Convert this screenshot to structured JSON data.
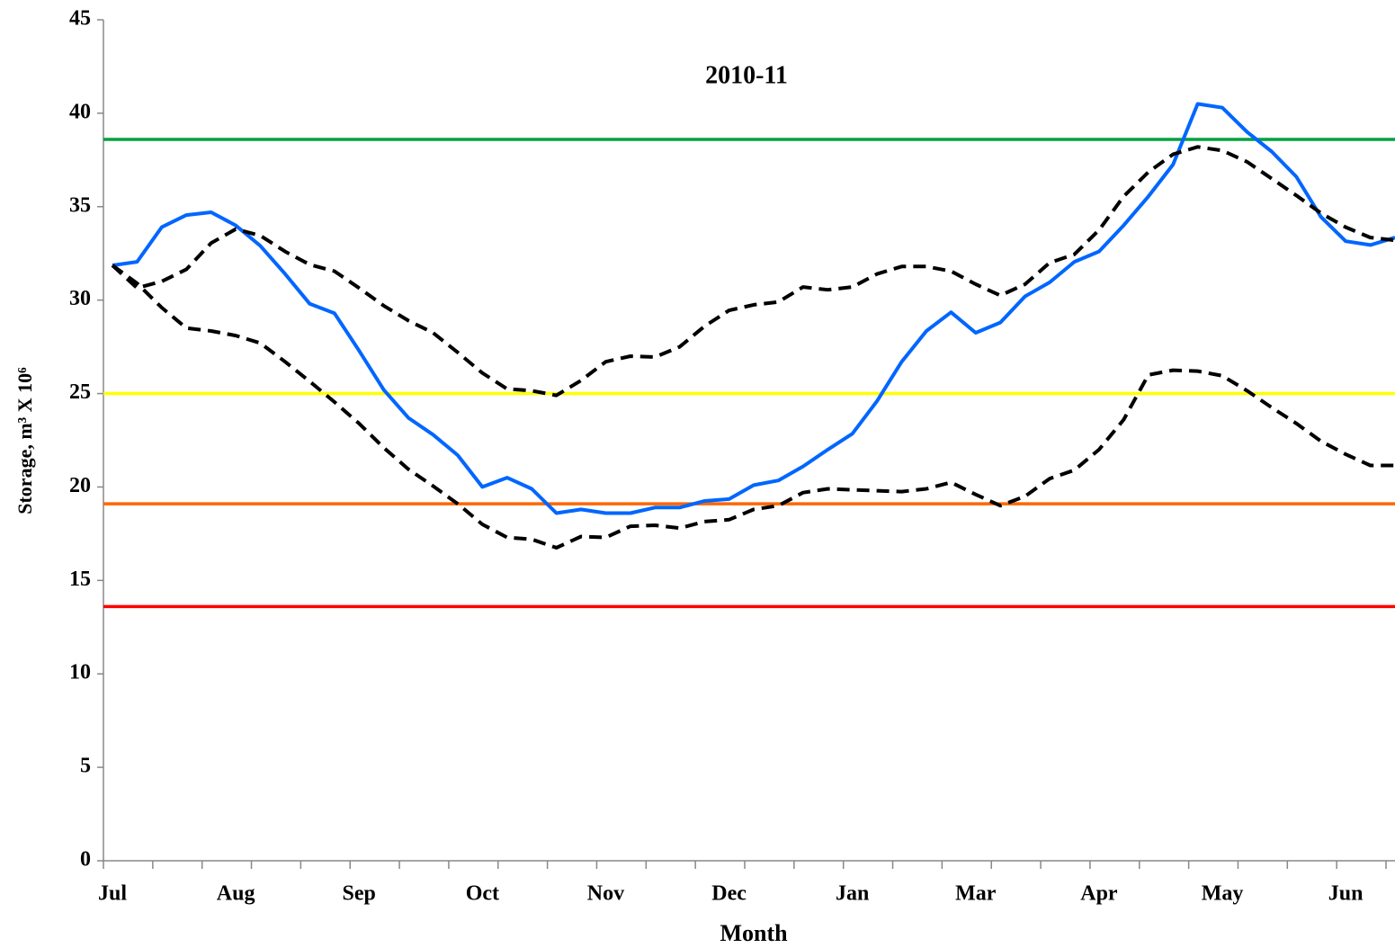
{
  "chart_data": {
    "type": "line",
    "title": "2010-11",
    "x_label": "Month",
    "y_label": "Storage, m³ X 10⁶",
    "categories": [
      "Jul",
      null,
      null,
      null,
      null,
      "Aug",
      null,
      null,
      null,
      null,
      "Sep",
      null,
      null,
      null,
      null,
      "Oct",
      null,
      null,
      null,
      null,
      "Nov",
      null,
      null,
      null,
      null,
      "Dec",
      null,
      null,
      null,
      null,
      "Jan",
      null,
      null,
      null,
      null,
      "Mar",
      null,
      null,
      null,
      null,
      "Apr",
      null,
      null,
      null,
      null,
      "May",
      null,
      null,
      null,
      null,
      "Jun",
      null,
      null
    ],
    "series": [
      {
        "color": "#0066ff",
        "dashed": false,
        "values": [
          31.86,
          32.05,
          33.9,
          34.55,
          34.7,
          34.0,
          32.9,
          31.4,
          29.8,
          29.3,
          27.3,
          25.2,
          23.7,
          22.8,
          21.7,
          20.0,
          20.5,
          19.9,
          18.6,
          18.8,
          18.6,
          18.6,
          18.9,
          18.9,
          19.25,
          19.35,
          20.1,
          20.35,
          21.1,
          22.0,
          22.85,
          24.6,
          26.7,
          28.35,
          29.35,
          28.25,
          28.8,
          30.2,
          30.95,
          32.05,
          32.6,
          34.0,
          35.55,
          37.25,
          40.5,
          40.3,
          39.0,
          37.95,
          36.6,
          34.45,
          33.15,
          32.95,
          33.35
        ]
      },
      {
        "color": "#000000",
        "dashed": true,
        "values": [
          31.86,
          30.65,
          31.0,
          31.65,
          33.05,
          33.8,
          33.45,
          32.6,
          31.9,
          31.55,
          30.65,
          29.7,
          28.9,
          28.25,
          27.2,
          26.1,
          25.25,
          25.15,
          24.9,
          25.7,
          26.7,
          27.0,
          26.95,
          27.5,
          28.6,
          29.45,
          29.75,
          29.9,
          30.7,
          30.55,
          30.7,
          31.4,
          31.8,
          31.8,
          31.55,
          30.85,
          30.25,
          30.85,
          32.0,
          32.45,
          33.75,
          35.55,
          36.85,
          37.8,
          38.2,
          38.0,
          37.4,
          36.5,
          35.6,
          34.65,
          33.9,
          33.35,
          33.2
        ]
      },
      {
        "color": "#000000",
        "dashed": true,
        "values": [
          31.86,
          30.9,
          29.6,
          28.5,
          28.35,
          28.1,
          27.7,
          26.7,
          25.65,
          24.55,
          23.4,
          22.1,
          20.95,
          20.05,
          19.1,
          18.0,
          17.3,
          17.2,
          16.75,
          17.35,
          17.3,
          17.9,
          17.95,
          17.8,
          18.15,
          18.25,
          18.8,
          19.0,
          19.7,
          19.9,
          19.85,
          19.8,
          19.75,
          19.9,
          20.25,
          19.6,
          19.0,
          19.5,
          20.45,
          20.9,
          22.0,
          23.6,
          26.0,
          26.25,
          26.2,
          25.95,
          25.15,
          24.25,
          23.4,
          22.45,
          21.75,
          21.15,
          21.15
        ]
      }
    ],
    "reference_lines": [
      {
        "value": 38.6,
        "color": "#00a040"
      },
      {
        "value": 25,
        "color": "#ffff00"
      },
      {
        "value": 19.1,
        "color": "#ff6600"
      },
      {
        "value": 13.6,
        "color": "#ff0000"
      }
    ],
    "ylim": [
      0,
      45
    ],
    "yticks": [
      0,
      5,
      10,
      15,
      20,
      25,
      30,
      35,
      40,
      45
    ],
    "grid": false
  }
}
